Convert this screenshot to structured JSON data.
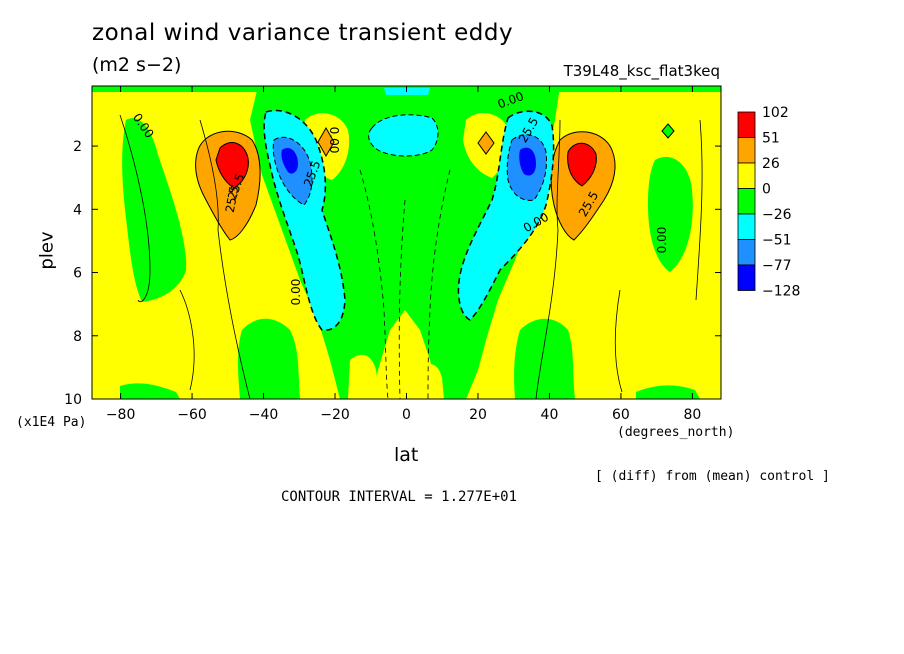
{
  "chart_data": {
    "type": "heatmap",
    "title": "zonal wind variance transient eddy",
    "units": "(m2 s−2)",
    "run_label": "T39L48_ksc_flat3keq",
    "xlabel": "lat",
    "xunit": "(degrees_north)",
    "ylabel": "plev",
    "yunit": "(x1E4 Pa)",
    "xlim": [
      -88,
      88
    ],
    "ylim": [
      10,
      0.1
    ],
    "xticks": [
      -80,
      -60,
      -40,
      -20,
      0,
      20,
      40,
      60,
      80
    ],
    "xtick_labels": [
      "−80",
      "−60",
      "−40",
      "−20",
      "0",
      "20",
      "40",
      "60",
      "80"
    ],
    "yticks": [
      2,
      4,
      6,
      8,
      10
    ],
    "ytick_labels": [
      "2",
      "4",
      "6",
      "8",
      "10"
    ],
    "legend": {
      "placement": "right",
      "levels": [
        "102",
        "51",
        "26",
        "0",
        "−26",
        "−51",
        "−77",
        "−128"
      ],
      "colors": [
        "#ff0000",
        "#ffa500",
        "#ffff00",
        "#00ff00",
        "#00ffff",
        "#1e90ff",
        "#0000ff"
      ]
    },
    "contour_labels": [
      "0.00",
      "0.00",
      "0.00",
      "0.00",
      "0.00",
      "0.00",
      "25.5",
      "25.5",
      "25.5",
      "25.5",
      "25.5"
    ],
    "features": [
      {
        "name": "SH positive max",
        "lat": -49,
        "plev": 2.6,
        "value": 102
      },
      {
        "name": "NH positive max",
        "lat": 49,
        "plev": 2.6,
        "value": 102
      },
      {
        "name": "SH negative min",
        "lat": -33,
        "plev": 2.7,
        "value": -90
      },
      {
        "name": "NH negative min",
        "lat": 33,
        "plev": 2.7,
        "value": -90
      },
      {
        "name": "equatorial negative",
        "lat": 0,
        "plev": 1.5,
        "value": -40
      }
    ],
    "diff_note": "[ (diff) from (mean) control ]",
    "contour_interval": "CONTOUR INTERVAL = 1.277E+01"
  }
}
